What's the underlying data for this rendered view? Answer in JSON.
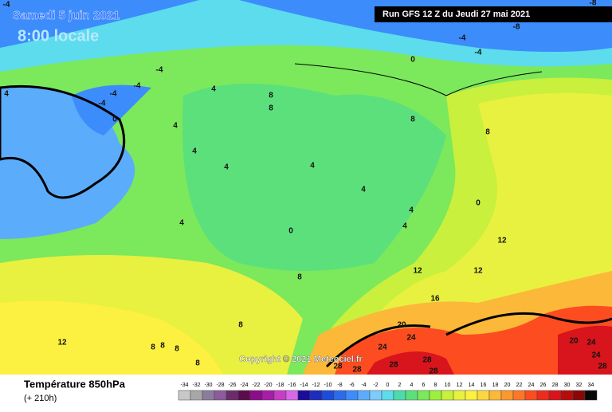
{
  "header": {
    "date": "Samedi 5 juin 2021",
    "time": "8:00 locale",
    "run": "Run GFS 12 Z du Jeudi 27 mai 2021"
  },
  "copyright": "Copyright © 2021 Meteociel.fr",
  "legend": {
    "title": "Température 850hPa",
    "subtitle": "(+ 210h)",
    "scale": [
      {
        "value": -34,
        "color": "#c8c8c8"
      },
      {
        "value": -32,
        "color": "#a8a8a8"
      },
      {
        "value": -30,
        "color": "#8c7c9c"
      },
      {
        "value": -28,
        "color": "#8c5c9c"
      },
      {
        "value": -26,
        "color": "#6c2c6c"
      },
      {
        "value": -24,
        "color": "#5c0c4c"
      },
      {
        "value": -22,
        "color": "#8c0c8c"
      },
      {
        "value": -20,
        "color": "#a81ca8"
      },
      {
        "value": -18,
        "color": "#c83cc8"
      },
      {
        "value": -16,
        "color": "#d868e8"
      },
      {
        "value": -14,
        "color": "#1c0c9c"
      },
      {
        "value": -12,
        "color": "#1c2cbc"
      },
      {
        "value": -10,
        "color": "#1c4cdc"
      },
      {
        "value": -8,
        "color": "#2c6cec"
      },
      {
        "value": -6,
        "color": "#3c8cfc"
      },
      {
        "value": -4,
        "color": "#5cacfc"
      },
      {
        "value": -2,
        "color": "#7cccfc"
      },
      {
        "value": 0,
        "color": "#5cdcec"
      },
      {
        "value": 2,
        "color": "#4cdcac"
      },
      {
        "value": 4,
        "color": "#5ce07c"
      },
      {
        "value": 6,
        "color": "#7ce85c"
      },
      {
        "value": 8,
        "color": "#9cf03c"
      },
      {
        "value": 10,
        "color": "#c8f03c"
      },
      {
        "value": 12,
        "color": "#e8f040"
      },
      {
        "value": 14,
        "color": "#fcf040"
      },
      {
        "value": 16,
        "color": "#fcd840"
      },
      {
        "value": 18,
        "color": "#fcb838"
      },
      {
        "value": 20,
        "color": "#fc9830"
      },
      {
        "value": 22,
        "color": "#fc7828"
      },
      {
        "value": 24,
        "color": "#fc4c20"
      },
      {
        "value": 26,
        "color": "#ec2c1c"
      },
      {
        "value": 28,
        "color": "#d8141c"
      },
      {
        "value": 30,
        "color": "#b80c0c"
      },
      {
        "value": 32,
        "color": "#880808"
      },
      {
        "value": 34,
        "color": "#080808"
      }
    ]
  },
  "map": {
    "labels": [
      -4,
      -8,
      -8,
      -4,
      -4,
      0,
      4,
      -4,
      -4,
      -4,
      -4,
      0,
      4,
      4,
      4,
      4,
      8,
      8,
      8,
      8,
      4,
      4,
      4,
      0,
      8,
      0,
      4,
      4,
      12,
      12,
      12,
      16,
      20,
      24,
      24,
      28,
      28,
      28,
      28,
      28,
      20,
      24,
      24,
      28,
      12,
      8,
      8,
      8,
      8,
      8
    ]
  }
}
